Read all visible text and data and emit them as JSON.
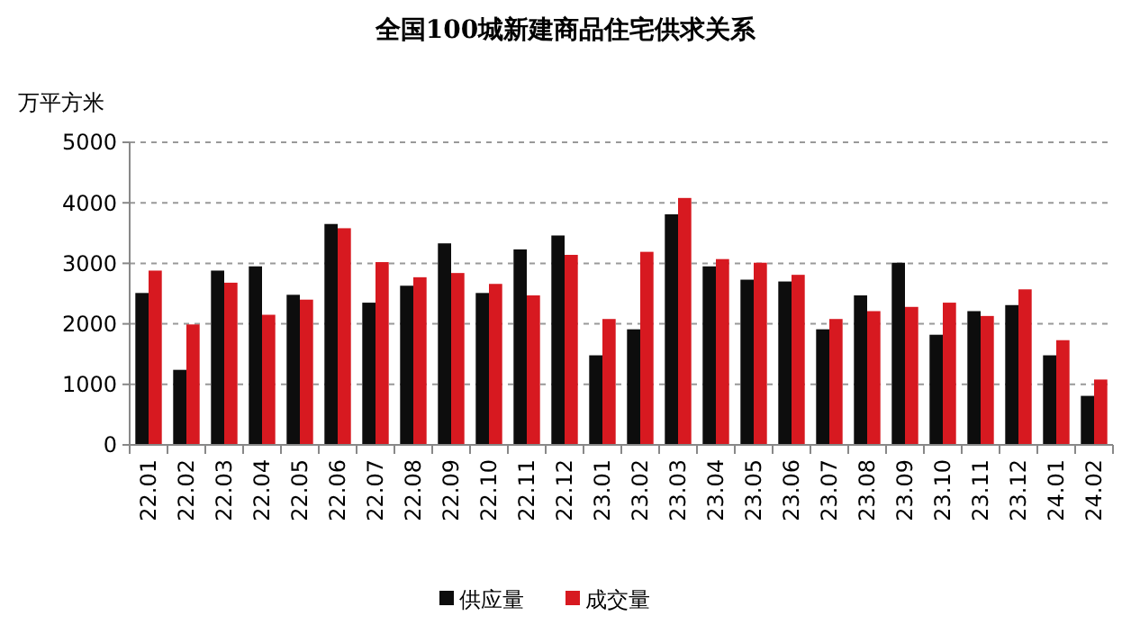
{
  "chart_data": {
    "type": "bar",
    "title": "全国100城新建商品住宅供求关系",
    "ylabel": "万平方米",
    "categories": [
      "22.01",
      "22.02",
      "22.03",
      "22.04",
      "22.05",
      "22.06",
      "22.07",
      "22.08",
      "22.09",
      "22.10",
      "22.11",
      "22.12",
      "23.01",
      "23.02",
      "23.03",
      "23.04",
      "23.05",
      "23.06",
      "23.07",
      "23.08",
      "23.09",
      "23.10",
      "23.11",
      "23.12",
      "24.01",
      "24.02"
    ],
    "series": [
      {
        "name": "供应量",
        "color": "#0d0d0d",
        "values": [
          2510,
          1240,
          2880,
          2950,
          2480,
          3650,
          2350,
          2630,
          3330,
          2510,
          3230,
          3460,
          1480,
          1910,
          3810,
          2950,
          2730,
          2700,
          1910,
          2470,
          3010,
          1820,
          2210,
          2310,
          1480,
          810
        ]
      },
      {
        "name": "成交量",
        "color": "#d71920",
        "values": [
          2880,
          1990,
          2680,
          2150,
          2400,
          3580,
          3020,
          2770,
          2840,
          2660,
          2470,
          3140,
          2080,
          3190,
          4080,
          3070,
          3010,
          2810,
          2080,
          2210,
          2280,
          2350,
          2130,
          2570,
          1730,
          1080
        ]
      }
    ],
    "ylim": [
      0,
      5000
    ],
    "yticks": [
      0,
      1000,
      2000,
      3000,
      4000,
      5000
    ],
    "grid": "y",
    "legend": "bottom"
  }
}
